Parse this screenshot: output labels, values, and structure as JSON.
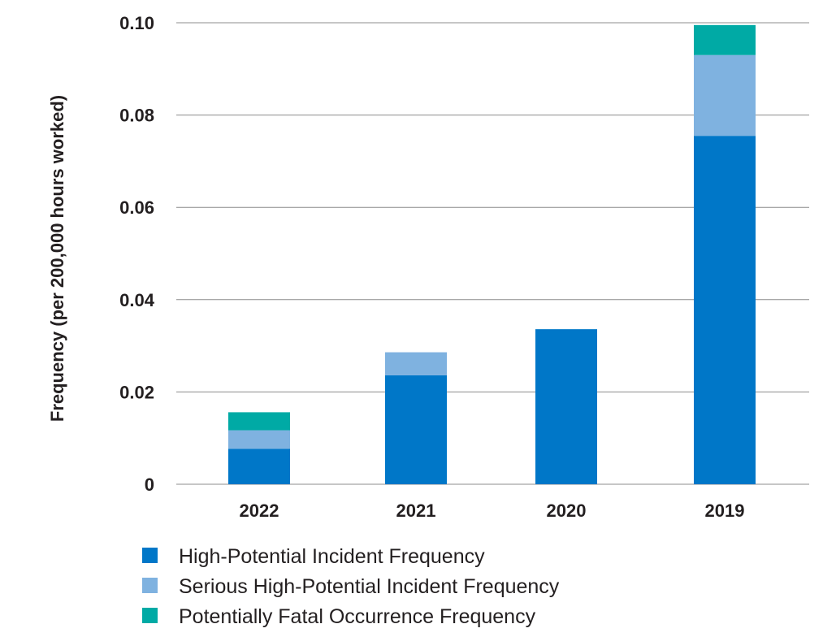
{
  "chart_data": {
    "type": "bar",
    "stacked": true,
    "ylabel": "Frequency (per 200,000 hours worked)",
    "xlabel": "",
    "ylim": [
      0,
      0.1
    ],
    "y_ticks": [
      {
        "value": 0,
        "label": "0"
      },
      {
        "value": 0.02,
        "label": "0.02"
      },
      {
        "value": 0.04,
        "label": "0.04"
      },
      {
        "value": 0.06,
        "label": "0.06"
      },
      {
        "value": 0.08,
        "label": "0.08"
      },
      {
        "value": 0.1,
        "label": "0.10"
      }
    ],
    "grid": true,
    "legend_position": "bottom",
    "categories": [
      "2022",
      "2021",
      "2020",
      "2019"
    ],
    "series": [
      {
        "name": "High-Potential Incident Frequency",
        "color": "#0077c8",
        "values": [
          0.0077,
          0.0236,
          0.0336,
          0.0755
        ]
      },
      {
        "name": "Serious High-Potential Incident Frequency",
        "color": "#7fb2e0",
        "values": [
          0.004,
          0.005,
          0,
          0.0175
        ]
      },
      {
        "name": "Potentially Fatal Occurrence Frequency",
        "color": "#00aaa5",
        "values": [
          0.0039,
          0,
          0,
          0.0065
        ]
      }
    ]
  }
}
